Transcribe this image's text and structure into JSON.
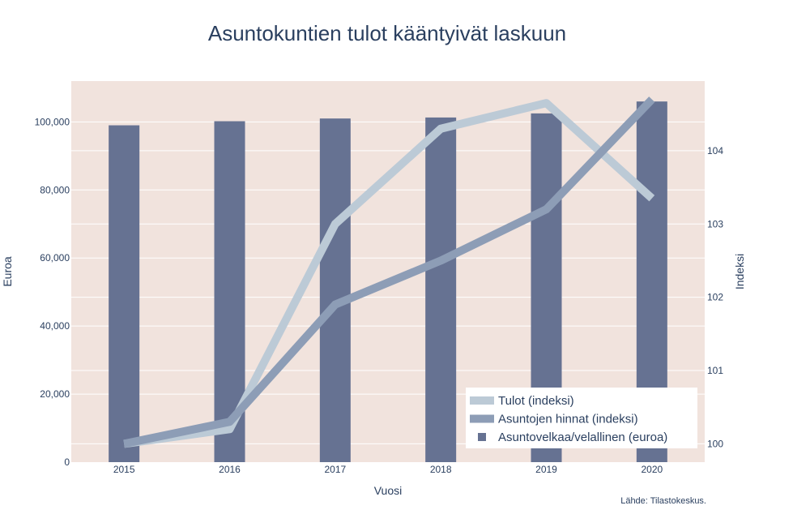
{
  "chart_data": {
    "type": "bar+line",
    "title": "Asuntokuntien tulot kääntyivät laskuun",
    "xlabel": "Vuosi",
    "ylabel_left": "Euroa",
    "ylabel_right": "Indeksi",
    "source": "Lähde: Tilastokeskus.",
    "categories": [
      "2015",
      "2016",
      "2017",
      "2018",
      "2019",
      "2020"
    ],
    "ylim_left": [
      0,
      112000
    ],
    "ylim_right": [
      99.75,
      104.95
    ],
    "yticks_left": [
      "0",
      "20,000",
      "40,000",
      "60,000",
      "80,000",
      "100,000"
    ],
    "yticks_right": [
      "100",
      "101",
      "102",
      "103",
      "104"
    ],
    "series": [
      {
        "name": "Tulot (indeksi)",
        "kind": "line",
        "axis": "right",
        "color": "#bccad6",
        "values": [
          100.0,
          100.2,
          103.0,
          104.3,
          104.65,
          103.35
        ]
      },
      {
        "name": "Asuntojen hinnat (indeksi)",
        "kind": "line",
        "axis": "right",
        "color": "#8d9db6",
        "values": [
          100.0,
          100.3,
          101.9,
          102.5,
          103.2,
          104.7
        ]
      },
      {
        "name": "Asuntovelkaa/velallinen (euroa)",
        "kind": "bar",
        "axis": "left",
        "color": "#667292",
        "values": [
          99000,
          100200,
          101000,
          101300,
          102500,
          106000
        ]
      }
    ],
    "plot_bg": "#f1e3dd",
    "grid": true,
    "legend_position": "bottom-right"
  }
}
